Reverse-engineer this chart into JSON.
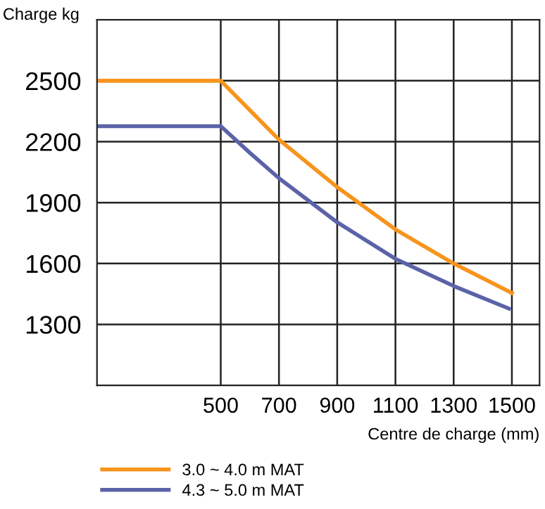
{
  "chart_data": {
    "type": "line",
    "ylabel": "Charge kg",
    "xlabel": "Centre de charge (mm)",
    "xlim": [
      75,
      1595
    ],
    "ylim": [
      1000,
      2800
    ],
    "xticks": [
      500,
      700,
      900,
      1100,
      1300,
      1500
    ],
    "yticks": [
      1300,
      1600,
      1900,
      2200,
      2500
    ],
    "grid": true,
    "legend": "bottom",
    "marker": "none",
    "line_style": "solid",
    "series": [
      {
        "name": "3.0 ~ 4.0 m MAT",
        "color": "#f7941d",
        "x": [
          75,
          500,
          600,
          700,
          900,
          1100,
          1300,
          1500
        ],
        "values": [
          2500,
          2500,
          2355,
          2210,
          1976,
          1768,
          1600,
          1455
        ]
      },
      {
        "name": "4.3 ~ 5.0 m MAT",
        "color": "#5b63a8",
        "x": [
          75,
          500,
          600,
          700,
          900,
          1100,
          1300,
          1490
        ],
        "values": [
          2276,
          2276,
          2145,
          2020,
          1803,
          1623,
          1489,
          1378
        ]
      }
    ]
  }
}
